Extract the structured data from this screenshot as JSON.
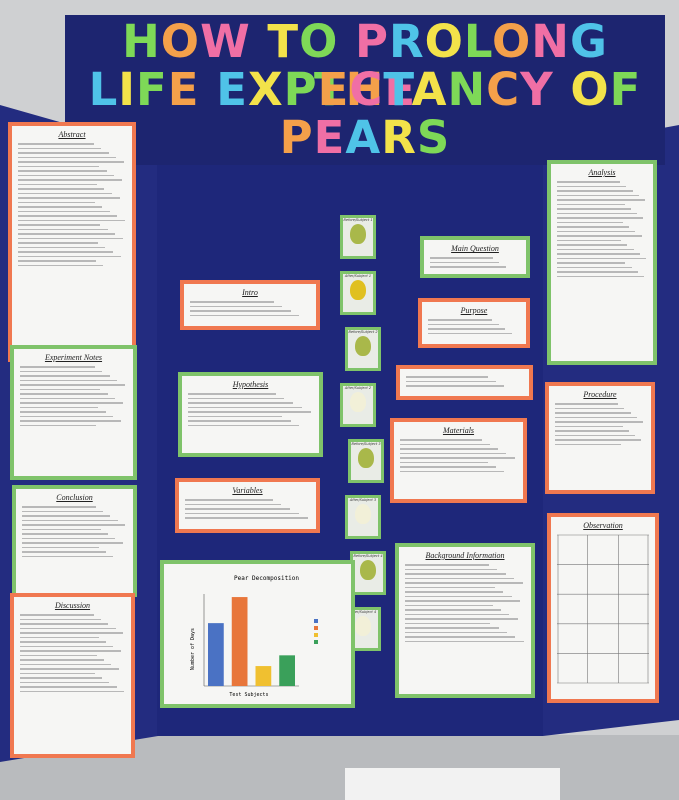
{
  "title_lines": [
    "HOW TO PROLONG THE",
    "LIFE EXPECTANCY OF",
    "PEARS"
  ],
  "sections": {
    "abstract": "Abstract",
    "experiment_notes": "Experiment Notes",
    "conclusion": "Conclusion",
    "discussion": "Discussion",
    "intro": "Intro",
    "hypothesis": "Hypothesis",
    "variables": "Variables",
    "main_question": "Main Question",
    "purpose": "Purpose",
    "materials": "Materials",
    "background": "Background Information",
    "analysis": "Analysis",
    "procedure": "Procedure",
    "observation": "Observation"
  },
  "photos": [
    "Before/Subject 1",
    "After/Subject 1",
    "Before/Subject 2",
    "After/Subject 2",
    "Before/Subject 3",
    "After/Subject 3",
    "Before/Subject 4",
    "After/Subject 4"
  ],
  "chart": {
    "title": "Pear Decomposition",
    "x_label": "Test Subjects",
    "y_label": "Number of Days",
    "values": [
      41,
      58,
      13,
      20
    ],
    "colors": [
      "#4a72c4",
      "#e8763a",
      "#f0c030",
      "#3aa05a"
    ],
    "ylim": [
      0,
      60
    ]
  }
}
